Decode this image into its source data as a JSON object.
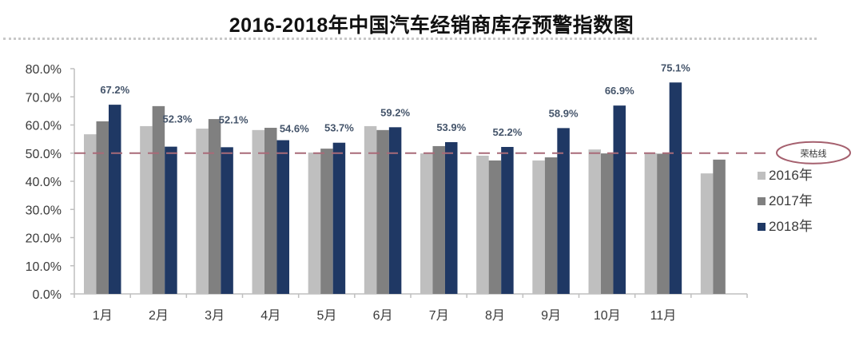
{
  "title": "2016-2018年中国汽车经销商库存预警指数图",
  "colors": {
    "2016年": "#bfbfbf",
    "2017年": "#808080",
    "2018年": "#1f3864",
    "data_label": "#44546a",
    "threshold_line": "#a86a78",
    "threshold_oval": "#a5606e"
  },
  "threshold": {
    "value": 50.0,
    "label": "荣枯线"
  },
  "legend": [
    {
      "label": "2016年",
      "color": "#bfbfbf"
    },
    {
      "label": "2017年",
      "color": "#808080"
    },
    {
      "label": "2018年",
      "color": "#1f3864"
    }
  ],
  "chart_data": {
    "type": "bar",
    "title": "2016-2018年中国汽车经销商库存预警指数图",
    "xlabel": "",
    "ylabel": "",
    "ylim": [
      0,
      80
    ],
    "yticks": [
      "0.0%",
      "10.0%",
      "20.0%",
      "30.0%",
      "40.0%",
      "50.0%",
      "60.0%",
      "70.0%",
      "80.0%"
    ],
    "categories": [
      "1月",
      "2月",
      "3月",
      "4月",
      "5月",
      "6月",
      "7月",
      "8月",
      "9月",
      "10月",
      "11月",
      ""
    ],
    "series": [
      {
        "name": "2016年",
        "values": [
          56.7,
          59.6,
          58.7,
          58.2,
          50.2,
          59.6,
          49.9,
          49.1,
          47.4,
          51.3,
          50.0,
          42.8
        ]
      },
      {
        "name": "2017年",
        "values": [
          61.3,
          66.7,
          62.1,
          59.0,
          51.6,
          58.2,
          52.5,
          47.4,
          48.5,
          49.9,
          49.8,
          47.7
        ]
      },
      {
        "name": "2018年",
        "values": [
          67.2,
          52.3,
          52.1,
          54.6,
          53.7,
          59.2,
          53.9,
          52.2,
          58.9,
          66.9,
          75.1,
          null
        ]
      }
    ],
    "data_labels": {
      "series": "2018年",
      "values": [
        "67.2%",
        "52.3%",
        "52.1%",
        "54.6%",
        "53.7%",
        "59.2%",
        "53.9%",
        "52.2%",
        "58.9%",
        "66.9%",
        "75.1%"
      ]
    },
    "reference_line": {
      "y": 50.0,
      "style": "dashed",
      "label": "荣枯线"
    },
    "grid": false,
    "legend_position": "right"
  }
}
